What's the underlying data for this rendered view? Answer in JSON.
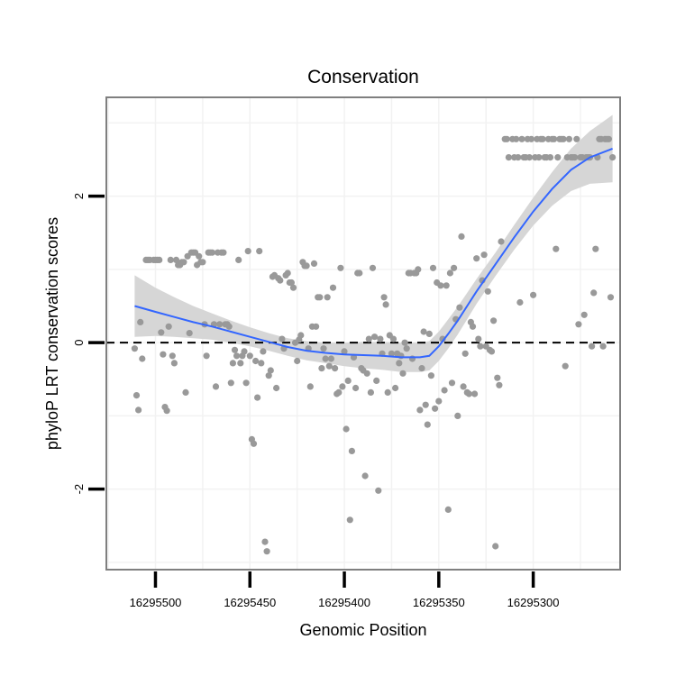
{
  "chart_data": {
    "type": "scatter",
    "title": "Conservation",
    "xlabel": "Genomic Position",
    "ylabel": "phyloP LRT conservation scores",
    "x_reversed": true,
    "xlim": [
      16295526,
      16295254
    ],
    "ylim": [
      -3.1,
      3.35
    ],
    "x_ticks": [
      {
        "value": 16295500,
        "label": "16295500"
      },
      {
        "value": 16295450,
        "label": "16295450"
      },
      {
        "value": 16295400,
        "label": "16295400"
      },
      {
        "value": 16295350,
        "label": "16295350"
      },
      {
        "value": 16295300,
        "label": "16295300"
      }
    ],
    "y_ticks": [
      {
        "value": -2,
        "label": "-2"
      },
      {
        "value": 0,
        "label": "0"
      },
      {
        "value": 2,
        "label": "2"
      }
    ],
    "reference_line": {
      "y": 0,
      "style": "dashed"
    },
    "colors": {
      "points": "#999999",
      "smooth_line": "#3366ff",
      "ribbon": "#d6d6d6",
      "panel_border": "#7f7f7f",
      "grid": "#f2f2f2"
    },
    "points": [
      [
        16295511,
        -0.08
      ],
      [
        16295510,
        -0.72
      ],
      [
        16295509,
        -0.92
      ],
      [
        16295508,
        0.28
      ],
      [
        16295507,
        -0.22
      ],
      [
        16295505,
        1.13
      ],
      [
        16295504,
        1.13
      ],
      [
        16295503,
        1.13
      ],
      [
        16295501,
        1.13
      ],
      [
        16295500,
        1.13
      ],
      [
        16295499,
        1.13
      ],
      [
        16295498,
        1.13
      ],
      [
        16295497,
        0.14
      ],
      [
        16295496,
        -0.16
      ],
      [
        16295495,
        -0.88
      ],
      [
        16295494,
        -0.93
      ],
      [
        16295493,
        0.22
      ],
      [
        16295492,
        1.13
      ],
      [
        16295491,
        -0.18
      ],
      [
        16295490,
        -0.28
      ],
      [
        16295489,
        1.13
      ],
      [
        16295488,
        1.06
      ],
      [
        16295487,
        1.06
      ],
      [
        16295486,
        1.1
      ],
      [
        16295485,
        1.1
      ],
      [
        16295484,
        -0.68
      ],
      [
        16295483,
        1.18
      ],
      [
        16295482,
        0.13
      ],
      [
        16295481,
        1.23
      ],
      [
        16295480,
        1.23
      ],
      [
        16295479,
        1.23
      ],
      [
        16295478,
        1.06
      ],
      [
        16295477,
        1.18
      ],
      [
        16295476,
        1.1
      ],
      [
        16295475,
        1.1
      ],
      [
        16295474,
        0.25
      ],
      [
        16295473,
        -0.18
      ],
      [
        16295472,
        1.23
      ],
      [
        16295471,
        1.23
      ],
      [
        16295470,
        1.23
      ],
      [
        16295469,
        0.25
      ],
      [
        16295468,
        -0.6
      ],
      [
        16295467,
        1.23
      ],
      [
        16295466,
        0.25
      ],
      [
        16295465,
        1.23
      ],
      [
        16295464,
        1.23
      ],
      [
        16295463,
        0.25
      ],
      [
        16295462,
        0.25
      ],
      [
        16295461,
        0.22
      ],
      [
        16295460,
        -0.55
      ],
      [
        16295459,
        -0.28
      ],
      [
        16295458,
        -0.1
      ],
      [
        16295457,
        -0.18
      ],
      [
        16295456,
        1.13
      ],
      [
        16295455,
        -0.28
      ],
      [
        16295454,
        -0.18
      ],
      [
        16295453,
        -0.12
      ],
      [
        16295452,
        -0.55
      ],
      [
        16295451,
        1.25
      ],
      [
        16295450,
        -0.18
      ],
      [
        16295449,
        -1.32
      ],
      [
        16295448,
        -1.38
      ],
      [
        16295447,
        -0.25
      ],
      [
        16295446,
        -0.75
      ],
      [
        16295445,
        1.25
      ],
      [
        16295444,
        -0.28
      ],
      [
        16295443,
        -0.12
      ],
      [
        16295442,
        -2.72
      ],
      [
        16295441,
        -2.85
      ],
      [
        16295440,
        -0.45
      ],
      [
        16295439,
        -0.38
      ],
      [
        16295438,
        0.9
      ],
      [
        16295437,
        0.92
      ],
      [
        16295436,
        -0.62
      ],
      [
        16295435,
        0.88
      ],
      [
        16295434,
        0.85
      ],
      [
        16295433,
        0.05
      ],
      [
        16295432,
        -0.08
      ],
      [
        16295431,
        0.92
      ],
      [
        16295430,
        0.95
      ],
      [
        16295429,
        0.82
      ],
      [
        16295428,
        0.82
      ],
      [
        16295427,
        0.75
      ],
      [
        16295426,
        0.0
      ],
      [
        16295425,
        -0.25
      ],
      [
        16295424,
        0.04
      ],
      [
        16295423,
        0.1
      ],
      [
        16295422,
        1.1
      ],
      [
        16295421,
        1.05
      ],
      [
        16295420,
        1.05
      ],
      [
        16295419,
        -0.08
      ],
      [
        16295418,
        -0.6
      ],
      [
        16295417,
        0.22
      ],
      [
        16295416,
        1.08
      ],
      [
        16295415,
        0.22
      ],
      [
        16295414,
        0.62
      ],
      [
        16295413,
        0.62
      ],
      [
        16295412,
        -0.35
      ],
      [
        16295411,
        -0.08
      ],
      [
        16295410,
        -0.22
      ],
      [
        16295409,
        0.62
      ],
      [
        16295408,
        -0.32
      ],
      [
        16295407,
        -0.22
      ],
      [
        16295406,
        0.75
      ],
      [
        16295405,
        -0.35
      ],
      [
        16295404,
        -0.7
      ],
      [
        16295403,
        -0.68
      ],
      [
        16295402,
        1.02
      ],
      [
        16295401,
        -0.6
      ],
      [
        16295400,
        -0.12
      ],
      [
        16295399,
        -1.18
      ],
      [
        16295398,
        -0.52
      ],
      [
        16295397,
        -2.42
      ],
      [
        16295396,
        -1.48
      ],
      [
        16295395,
        -0.2
      ],
      [
        16295394,
        -0.62
      ],
      [
        16295393,
        0.95
      ],
      [
        16295392,
        0.95
      ],
      [
        16295391,
        -0.35
      ],
      [
        16295390,
        -0.38
      ],
      [
        16295389,
        -1.82
      ],
      [
        16295388,
        -0.42
      ],
      [
        16295387,
        0.05
      ],
      [
        16295386,
        -0.68
      ],
      [
        16295385,
        1.02
      ],
      [
        16295384,
        0.08
      ],
      [
        16295383,
        -0.52
      ],
      [
        16295382,
        -2.02
      ],
      [
        16295381,
        0.05
      ],
      [
        16295380,
        -0.15
      ],
      [
        16295379,
        0.62
      ],
      [
        16295378,
        0.52
      ],
      [
        16295377,
        -0.68
      ],
      [
        16295376,
        0.1
      ],
      [
        16295375,
        -0.15
      ],
      [
        16295374,
        0.05
      ],
      [
        16295373,
        -0.62
      ],
      [
        16295372,
        -0.15
      ],
      [
        16295371,
        -0.28
      ],
      [
        16295370,
        -0.18
      ],
      [
        16295369,
        -0.42
      ],
      [
        16295368,
        0.0
      ],
      [
        16295367,
        -0.08
      ],
      [
        16295366,
        0.95
      ],
      [
        16295365,
        0.95
      ],
      [
        16295364,
        -0.22
      ],
      [
        16295363,
        0.95
      ],
      [
        16295362,
        0.95
      ],
      [
        16295361,
        1.0
      ],
      [
        16295360,
        -0.92
      ],
      [
        16295359,
        -0.35
      ],
      [
        16295358,
        0.15
      ],
      [
        16295357,
        -0.85
      ],
      [
        16295356,
        -1.12
      ],
      [
        16295355,
        0.12
      ],
      [
        16295354,
        -0.45
      ],
      [
        16295353,
        1.02
      ],
      [
        16295352,
        -0.9
      ],
      [
        16295351,
        0.82
      ],
      [
        16295350,
        -0.8
      ],
      [
        16295349,
        0.78
      ],
      [
        16295348,
        0.05
      ],
      [
        16295347,
        -0.65
      ],
      [
        16295346,
        0.78
      ],
      [
        16295345,
        -2.28
      ],
      [
        16295344,
        0.95
      ],
      [
        16295343,
        -0.55
      ],
      [
        16295342,
        1.02
      ],
      [
        16295341,
        0.32
      ],
      [
        16295340,
        -1.0
      ],
      [
        16295339,
        0.48
      ],
      [
        16295338,
        1.45
      ],
      [
        16295337,
        -0.6
      ],
      [
        16295336,
        -0.15
      ],
      [
        16295335,
        -0.68
      ],
      [
        16295334,
        -0.7
      ],
      [
        16295333,
        0.28
      ],
      [
        16295332,
        0.22
      ],
      [
        16295331,
        -0.7
      ],
      [
        16295330,
        1.15
      ],
      [
        16295329,
        0.05
      ],
      [
        16295328,
        -0.05
      ],
      [
        16295327,
        0.85
      ],
      [
        16295326,
        1.2
      ],
      [
        16295325,
        -0.05
      ],
      [
        16295324,
        0.7
      ],
      [
        16295323,
        -0.1
      ],
      [
        16295322,
        -0.12
      ],
      [
        16295321,
        0.3
      ],
      [
        16295320,
        -2.78
      ],
      [
        16295319,
        -0.48
      ],
      [
        16295318,
        -0.58
      ],
      [
        16295317,
        1.38
      ],
      [
        16295315,
        2.78
      ],
      [
        16295314,
        2.78
      ],
      [
        16295313,
        2.53
      ],
      [
        16295311,
        2.78
      ],
      [
        16295310,
        2.53
      ],
      [
        16295309,
        2.78
      ],
      [
        16295308,
        2.53
      ],
      [
        16295307,
        0.55
      ],
      [
        16295306,
        2.78
      ],
      [
        16295305,
        2.53
      ],
      [
        16295304,
        2.53
      ],
      [
        16295303,
        2.78
      ],
      [
        16295302,
        2.53
      ],
      [
        16295301,
        2.78
      ],
      [
        16295300,
        0.65
      ],
      [
        16295299,
        2.53
      ],
      [
        16295298,
        2.78
      ],
      [
        16295297,
        2.53
      ],
      [
        16295296,
        2.78
      ],
      [
        16295295,
        2.78
      ],
      [
        16295294,
        2.53
      ],
      [
        16295293,
        2.53
      ],
      [
        16295292,
        2.78
      ],
      [
        16295291,
        2.53
      ],
      [
        16295290,
        2.78
      ],
      [
        16295289,
        2.78
      ],
      [
        16295288,
        1.28
      ],
      [
        16295287,
        2.53
      ],
      [
        16295286,
        2.78
      ],
      [
        16295285,
        2.78
      ],
      [
        16295284,
        2.78
      ],
      [
        16295283,
        -0.32
      ],
      [
        16295282,
        2.53
      ],
      [
        16295281,
        2.78
      ],
      [
        16295280,
        2.53
      ],
      [
        16295279,
        2.53
      ],
      [
        16295278,
        2.53
      ],
      [
        16295277,
        2.78
      ],
      [
        16295276,
        0.25
      ],
      [
        16295275,
        2.53
      ],
      [
        16295274,
        2.53
      ],
      [
        16295273,
        0.38
      ],
      [
        16295272,
        2.53
      ],
      [
        16295271,
        2.53
      ],
      [
        16295270,
        2.53
      ],
      [
        16295269,
        -0.05
      ],
      [
        16295268,
        0.68
      ],
      [
        16295267,
        1.28
      ],
      [
        16295266,
        2.53
      ],
      [
        16295265,
        2.78
      ],
      [
        16295264,
        2.78
      ],
      [
        16295263,
        -0.05
      ],
      [
        16295262,
        2.78
      ],
      [
        16295261,
        2.78
      ],
      [
        16295260,
        2.78
      ],
      [
        16295259,
        0.62
      ],
      [
        16295258,
        2.53
      ]
    ],
    "smooth": {
      "x": [
        16295511,
        16295500,
        16295490,
        16295480,
        16295470,
        16295460,
        16295450,
        16295440,
        16295430,
        16295420,
        16295410,
        16295400,
        16295390,
        16295380,
        16295370,
        16295360,
        16295355,
        16295350,
        16295345,
        16295340,
        16295335,
        16295330,
        16295320,
        16295310,
        16295300,
        16295290,
        16295280,
        16295270,
        16295258
      ],
      "y": [
        0.5,
        0.42,
        0.35,
        0.28,
        0.22,
        0.15,
        0.08,
        0.01,
        -0.06,
        -0.11,
        -0.14,
        -0.16,
        -0.17,
        -0.18,
        -0.2,
        -0.2,
        -0.18,
        -0.05,
        0.12,
        0.3,
        0.5,
        0.7,
        1.07,
        1.44,
        1.79,
        2.1,
        2.36,
        2.53,
        2.65
      ],
      "se": [
        0.42,
        0.33,
        0.27,
        0.22,
        0.18,
        0.15,
        0.13,
        0.12,
        0.12,
        0.13,
        0.14,
        0.16,
        0.18,
        0.19,
        0.2,
        0.2,
        0.2,
        0.2,
        0.2,
        0.19,
        0.18,
        0.17,
        0.16,
        0.17,
        0.19,
        0.23,
        0.29,
        0.36,
        0.46
      ]
    }
  }
}
